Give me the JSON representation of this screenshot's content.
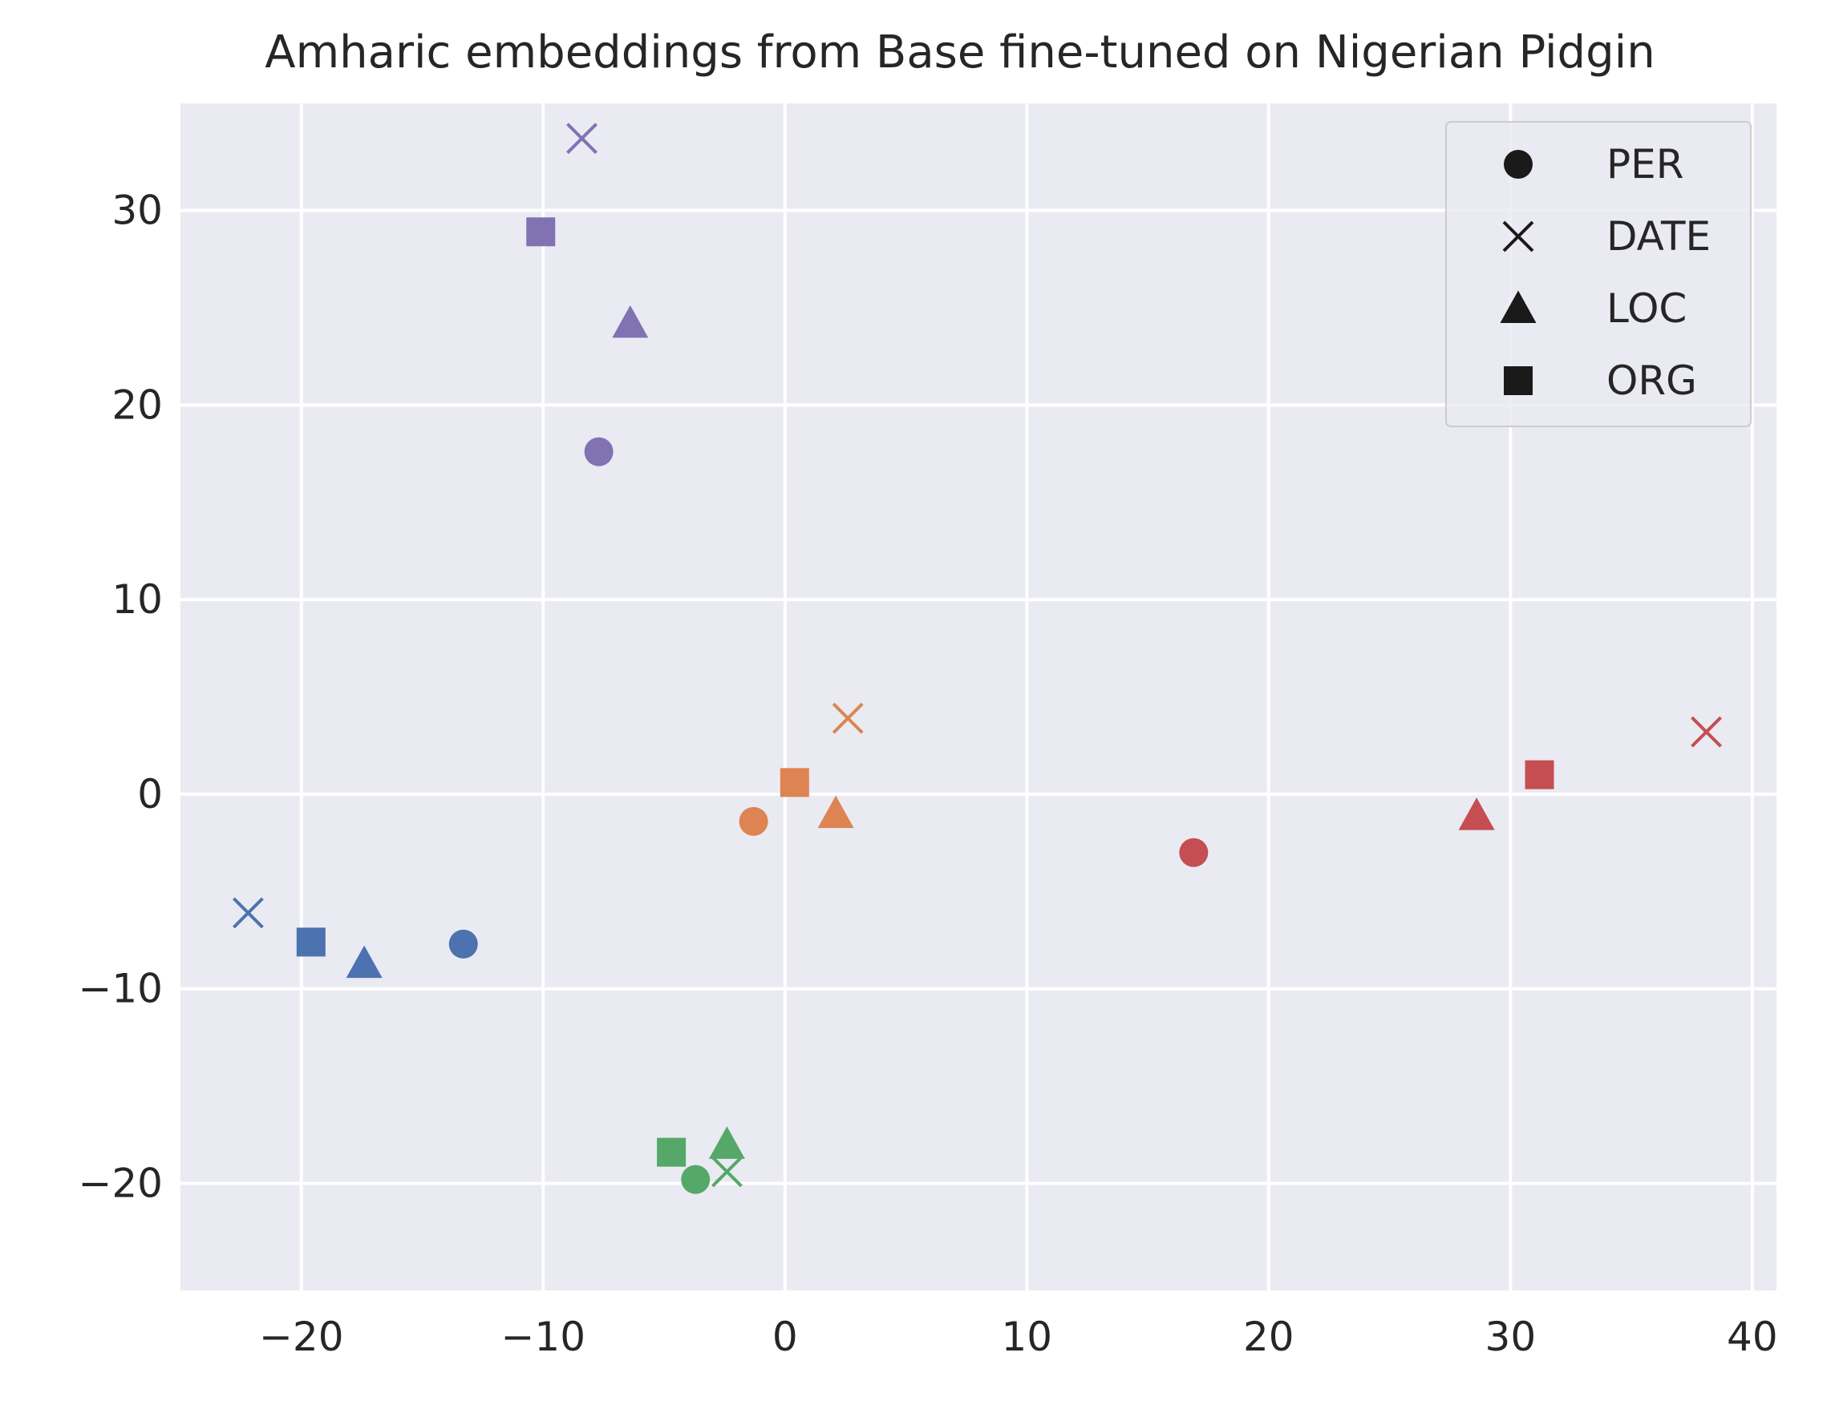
{
  "chart_data": {
    "type": "scatter",
    "title": "Amharic embeddings from Base fine-tuned on Nigerian Pidgin",
    "xlabel": "",
    "ylabel": "",
    "xlim": [
      -25,
      41
    ],
    "ylim": [
      -25.5,
      35.5
    ],
    "xticks": [
      -20,
      -10,
      0,
      10,
      20,
      30,
      40
    ],
    "yticks": [
      -20,
      -10,
      0,
      10,
      20,
      30
    ],
    "xtick_labels": [
      "−20",
      "−10",
      "0",
      "10",
      "20",
      "30",
      "40"
    ],
    "ytick_labels": [
      "−20",
      "−10",
      "0",
      "10",
      "20",
      "30"
    ],
    "grid": true,
    "background": "#eaeaf2",
    "legend": {
      "placement": "top-right",
      "entries": [
        {
          "label": "PER",
          "marker": "circle"
        },
        {
          "label": "DATE",
          "marker": "x"
        },
        {
          "label": "LOC",
          "marker": "triangle"
        },
        {
          "label": "ORG",
          "marker": "square"
        }
      ]
    },
    "series": [
      {
        "color": "#4c72b0",
        "points": [
          {
            "marker": "circle",
            "x": -13.3,
            "y": -7.7
          },
          {
            "marker": "x",
            "x": -22.2,
            "y": -6.1
          },
          {
            "marker": "triangle",
            "x": -17.4,
            "y": -8.7
          },
          {
            "marker": "square",
            "x": -19.6,
            "y": -7.6
          }
        ]
      },
      {
        "color": "#dd8452",
        "points": [
          {
            "marker": "circle",
            "x": -1.3,
            "y": -1.4
          },
          {
            "marker": "x",
            "x": 2.6,
            "y": 3.9
          },
          {
            "marker": "triangle",
            "x": 2.1,
            "y": -1.0
          },
          {
            "marker": "square",
            "x": 0.4,
            "y": 0.6
          }
        ]
      },
      {
        "color": "#55a868",
        "points": [
          {
            "marker": "circle",
            "x": -3.7,
            "y": -19.8
          },
          {
            "marker": "x",
            "x": -2.4,
            "y": -19.4
          },
          {
            "marker": "triangle",
            "x": -2.4,
            "y": -18.0
          },
          {
            "marker": "square",
            "x": -4.7,
            "y": -18.4
          }
        ]
      },
      {
        "color": "#c44e52",
        "points": [
          {
            "marker": "circle",
            "x": 16.9,
            "y": -3.0
          },
          {
            "marker": "x",
            "x": 38.1,
            "y": 3.2
          },
          {
            "marker": "triangle",
            "x": 28.6,
            "y": -1.1
          },
          {
            "marker": "square",
            "x": 31.2,
            "y": 1.0
          }
        ]
      },
      {
        "color": "#8172b3",
        "points": [
          {
            "marker": "circle",
            "x": -7.7,
            "y": 17.6
          },
          {
            "marker": "x",
            "x": -8.4,
            "y": 33.7
          },
          {
            "marker": "triangle",
            "x": -6.4,
            "y": 24.2
          },
          {
            "marker": "square",
            "x": -10.1,
            "y": 28.9
          }
        ]
      }
    ]
  }
}
